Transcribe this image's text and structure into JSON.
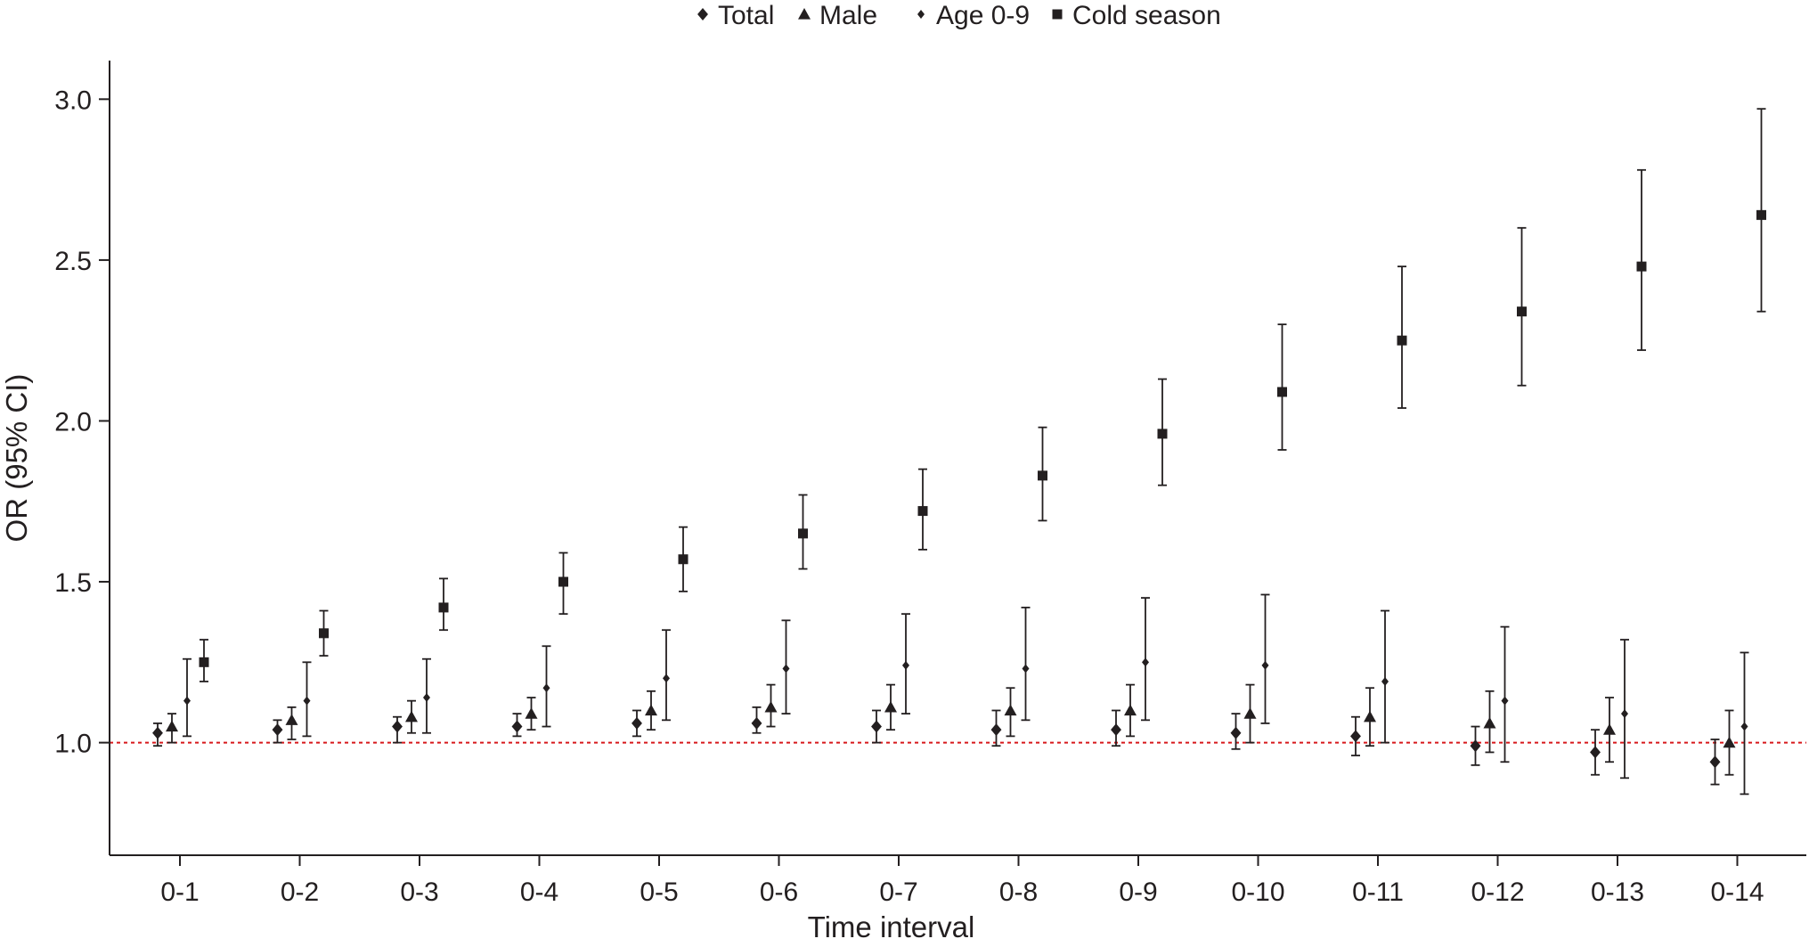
{
  "chart_data": {
    "type": "scatter",
    "xlabel": "Time interval",
    "ylabel": "OR (95% CI)",
    "categories": [
      "0-1",
      "0-2",
      "0-3",
      "0-4",
      "0-5",
      "0-6",
      "0-7",
      "0-8",
      "0-9",
      "0-10",
      "0-11",
      "0-12",
      "0-13",
      "0-14"
    ],
    "yticks": [
      "1.0",
      "1.5",
      "2.0",
      "2.5",
      "3.0"
    ],
    "ylim": [
      0.65,
      3.12
    ],
    "reference_line": {
      "y": 1.0,
      "color": "#d7191c",
      "style": "dotted"
    },
    "legend_position": "top-center",
    "series": [
      {
        "name": "Total",
        "marker": "diamond",
        "values": [
          1.03,
          1.04,
          1.05,
          1.05,
          1.06,
          1.06,
          1.05,
          1.04,
          1.04,
          1.03,
          1.02,
          0.99,
          0.97,
          0.94
        ],
        "lower": [
          0.99,
          1.0,
          1.0,
          1.02,
          1.02,
          1.03,
          1.0,
          0.99,
          0.99,
          0.98,
          0.96,
          0.93,
          0.9,
          0.87
        ],
        "upper": [
          1.06,
          1.07,
          1.08,
          1.09,
          1.1,
          1.11,
          1.1,
          1.1,
          1.1,
          1.09,
          1.08,
          1.05,
          1.04,
          1.01
        ]
      },
      {
        "name": "Male",
        "marker": "triangle",
        "values": [
          1.05,
          1.07,
          1.08,
          1.09,
          1.1,
          1.11,
          1.11,
          1.1,
          1.1,
          1.09,
          1.08,
          1.06,
          1.04,
          1.0
        ],
        "lower": [
          1.0,
          1.01,
          1.03,
          1.04,
          1.04,
          1.05,
          1.04,
          1.02,
          1.02,
          1.0,
          0.99,
          0.97,
          0.94,
          0.9
        ],
        "upper": [
          1.09,
          1.11,
          1.13,
          1.14,
          1.16,
          1.18,
          1.18,
          1.17,
          1.18,
          1.18,
          1.17,
          1.16,
          1.14,
          1.1
        ]
      },
      {
        "name": "Age 0-9",
        "marker": "small-diamond",
        "values": [
          1.13,
          1.13,
          1.14,
          1.17,
          1.2,
          1.23,
          1.24,
          1.23,
          1.25,
          1.24,
          1.19,
          1.13,
          1.09,
          1.05
        ],
        "lower": [
          1.02,
          1.02,
          1.03,
          1.05,
          1.07,
          1.09,
          1.09,
          1.07,
          1.07,
          1.06,
          1.0,
          0.94,
          0.89,
          0.84
        ],
        "upper": [
          1.26,
          1.25,
          1.26,
          1.3,
          1.35,
          1.38,
          1.4,
          1.42,
          1.45,
          1.46,
          1.41,
          1.36,
          1.32,
          1.28
        ]
      },
      {
        "name": "Cold season",
        "marker": "square",
        "values": [
          1.25,
          1.34,
          1.42,
          1.5,
          1.57,
          1.65,
          1.72,
          1.83,
          1.96,
          2.09,
          2.25,
          2.34,
          2.48,
          2.64
        ],
        "lower": [
          1.19,
          1.27,
          1.35,
          1.4,
          1.47,
          1.54,
          1.6,
          1.69,
          1.8,
          1.91,
          2.04,
          2.11,
          2.22,
          2.34
        ],
        "upper": [
          1.32,
          1.41,
          1.51,
          1.59,
          1.67,
          1.77,
          1.85,
          1.98,
          2.13,
          2.3,
          2.48,
          2.6,
          2.78,
          2.97
        ]
      }
    ]
  }
}
